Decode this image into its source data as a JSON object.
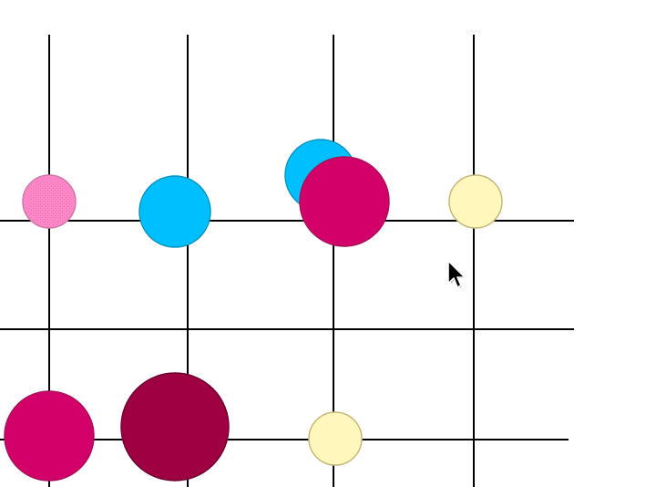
{
  "board": {
    "grid_color": "#000000",
    "columns": 4,
    "rows": 3
  },
  "palette": {
    "pink_light": "#ff88c8",
    "pink_light_stroke": "#d07aa8",
    "cyan": "#00bfff",
    "cyan_stroke": "#0a93c4",
    "magenta": "#d4006a",
    "magenta_stroke": "#a8105a",
    "crimson": "#9e0042",
    "crimson_stroke": "#6e0030",
    "cream": "#fff7bb",
    "cream_stroke": "#c7b77a"
  },
  "pieces": [
    {
      "name": "piece-pink-small",
      "color": "pink_light"
    },
    {
      "name": "piece-cyan-medium",
      "color": "cyan"
    },
    {
      "name": "piece-cyan-back",
      "color": "cyan"
    },
    {
      "name": "piece-magenta-large",
      "color": "magenta"
    },
    {
      "name": "piece-cream-small",
      "color": "cream"
    },
    {
      "name": "piece-magenta-large",
      "color": "magenta"
    },
    {
      "name": "piece-crimson-xlarge",
      "color": "crimson"
    },
    {
      "name": "piece-cream-small",
      "color": "cream"
    }
  ],
  "cursor": {
    "icon": "arrow-pointer-icon"
  }
}
